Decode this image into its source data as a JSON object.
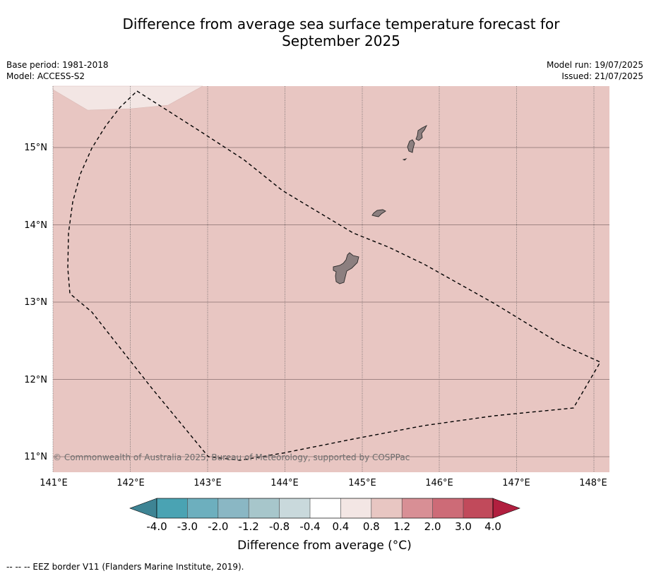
{
  "title": {
    "line1": "Difference from average sea surface temperature forecast for",
    "line2": "September 2025"
  },
  "meta": {
    "base_period": "Base period: 1981-2018",
    "model": "Model: ACCESS-S2",
    "model_run": "Model run: 19/07/2025",
    "issued": "Issued: 21/07/2025"
  },
  "map": {
    "lon_labels": [
      "141°E",
      "142°E",
      "143°E",
      "144°E",
      "145°E",
      "146°E",
      "147°E",
      "148°E"
    ],
    "lat_labels": [
      "15°N",
      "14°N",
      "13°N",
      "12°N",
      "11°N"
    ],
    "copyright": "© Commonwealth of Australia 2025, Bureau of Meteorology, supported by COSPPac",
    "colors": {
      "background_anomaly": "#e8c6c2",
      "light_anomaly": "#f3e6e4",
      "land": "#8c7f7f",
      "grid": "#555555",
      "eez_border": "#000000"
    }
  },
  "colorbar": {
    "title": "Difference from average (°C)",
    "labels": [
      "-4.0",
      "-3.0",
      "-2.0",
      "-1.2",
      "-0.8",
      "-0.4",
      "0.4",
      "0.8",
      "1.2",
      "2.0",
      "3.0",
      "4.0"
    ],
    "colors": [
      "#3e8494",
      "#4aa3b3",
      "#6dafbe",
      "#8ab7c4",
      "#a7c6cb",
      "#c9d9dc",
      "#ffffff",
      "#f3e6e4",
      "#e8c6c2",
      "#d88f95",
      "#cd6b77",
      "#c14a5b",
      "#b11f3f"
    ]
  },
  "footnote": "--  --  -- EEZ border V11 (Flanders Marine Institute, 2019)."
}
